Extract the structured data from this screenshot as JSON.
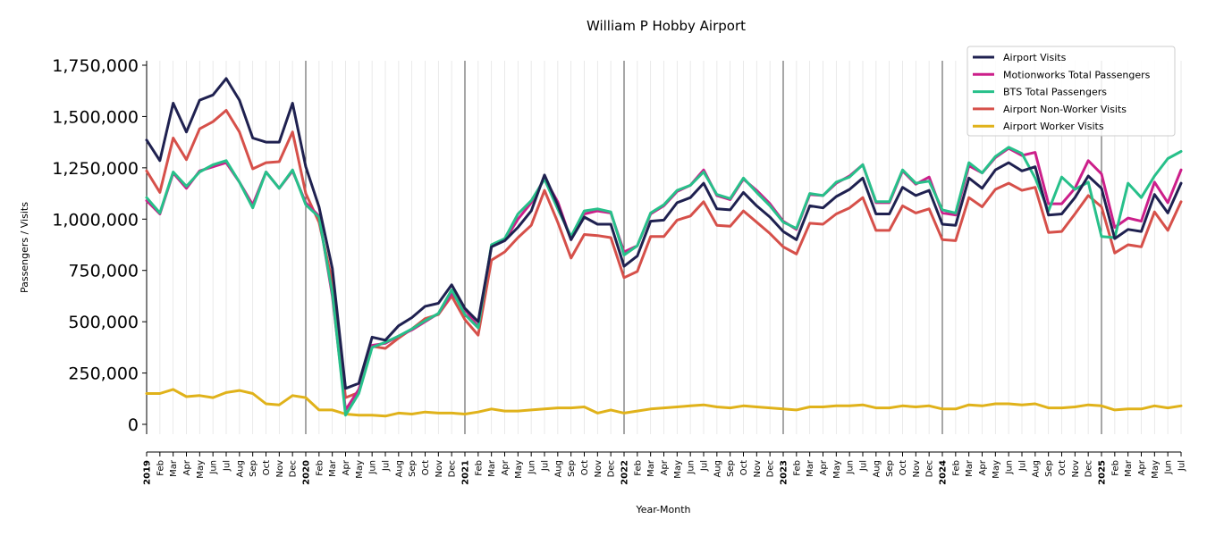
{
  "chart_data": {
    "type": "line",
    "title": "William P Hobby Airport",
    "xlabel": "Year-Month",
    "ylabel": "Passengers / Visits",
    "ylim": [
      0,
      1750000
    ],
    "yticks": [
      "0",
      "250,000",
      "500,000",
      "750,000",
      "1,000,000",
      "1,250,000",
      "1,500,000",
      "1,750,000"
    ],
    "ytick_values": [
      0,
      250000,
      500000,
      750000,
      1000000,
      1250000,
      1500000,
      1750000
    ],
    "grid": "vertical monthly lines, darker at year boundaries",
    "legend_position": "top-right",
    "months": [
      "2019",
      "Feb",
      "Mar",
      "Apr",
      "May",
      "Jun",
      "Jul",
      "Aug",
      "Sep",
      "Oct",
      "Nov",
      "Dec",
      "2020",
      "Feb",
      "Mar",
      "Apr",
      "May",
      "Jun",
      "Jul",
      "Aug",
      "Sep",
      "Oct",
      "Nov",
      "Dec",
      "2021",
      "Feb",
      "Mar",
      "Apr",
      "May",
      "Jun",
      "Jul",
      "Aug",
      "Sep",
      "Oct",
      "Nov",
      "Dec",
      "2022",
      "Feb",
      "Mar",
      "Apr",
      "May",
      "Jun",
      "Jul",
      "Aug",
      "Sep",
      "Oct",
      "Nov",
      "Dec",
      "2023",
      "Feb",
      "Mar",
      "Apr",
      "May",
      "Jun",
      "Jul",
      "Aug",
      "Sep",
      "Oct",
      "Nov",
      "Dec",
      "2024",
      "Feb",
      "Mar",
      "Apr",
      "May",
      "Jun",
      "Jul",
      "Aug",
      "Sep",
      "Oct",
      "Nov",
      "Dec",
      "2025",
      "Feb",
      "Mar",
      "Apr",
      "May",
      "Jun",
      "Jul"
    ],
    "series": [
      {
        "name": "Airport Visits",
        "color": "#1f2150",
        "values": [
          1385000,
          1285000,
          1565000,
          1425000,
          1580000,
          1605000,
          1685000,
          1580000,
          1395000,
          1375000,
          1375000,
          1565000,
          1255000,
          1060000,
          760000,
          175000,
          200000,
          425000,
          410000,
          480000,
          520000,
          575000,
          590000,
          680000,
          565000,
          500000,
          865000,
          895000,
          960000,
          1040000,
          1215000,
          1070000,
          900000,
          1010000,
          975000,
          975000,
          770000,
          820000,
          990000,
          995000,
          1080000,
          1105000,
          1175000,
          1050000,
          1045000,
          1130000,
          1065000,
          1010000,
          940000,
          900000,
          1065000,
          1055000,
          1110000,
          1145000,
          1200000,
          1025000,
          1025000,
          1155000,
          1115000,
          1140000,
          975000,
          970000,
          1200000,
          1150000,
          1240000,
          1275000,
          1235000,
          1255000,
          1020000,
          1025000,
          1105000,
          1210000,
          1150000,
          905000,
          950000,
          940000,
          1120000,
          1030000,
          1175000
        ]
      },
      {
        "name": "Motionworks Total Passengers",
        "color": "#cc1f8a",
        "values": [
          1090000,
          1025000,
          1225000,
          1150000,
          1235000,
          1255000,
          1275000,
          1180000,
          1070000,
          1230000,
          1150000,
          1235000,
          1080000,
          1015000,
          625000,
          70000,
          170000,
          385000,
          395000,
          430000,
          460000,
          500000,
          540000,
          640000,
          560000,
          475000,
          870000,
          895000,
          1000000,
          1080000,
          1200000,
          1085000,
          900000,
          1025000,
          1040000,
          1030000,
          840000,
          870000,
          1025000,
          1065000,
          1135000,
          1165000,
          1240000,
          1115000,
          1095000,
          1195000,
          1140000,
          1075000,
          990000,
          950000,
          1120000,
          1115000,
          1175000,
          1210000,
          1265000,
          1080000,
          1080000,
          1235000,
          1170000,
          1205000,
          1030000,
          1020000,
          1260000,
          1225000,
          1300000,
          1345000,
          1310000,
          1325000,
          1075000,
          1075000,
          1150000,
          1285000,
          1220000,
          960000,
          1005000,
          990000,
          1180000,
          1080000,
          1240000
        ]
      },
      {
        "name": "BTS Total Passengers",
        "color": "#27c08a",
        "values": [
          1105000,
          1030000,
          1230000,
          1160000,
          1230000,
          1265000,
          1285000,
          1180000,
          1055000,
          1230000,
          1150000,
          1240000,
          1070000,
          1010000,
          640000,
          45000,
          150000,
          375000,
          400000,
          430000,
          465000,
          505000,
          540000,
          655000,
          535000,
          470000,
          875000,
          905000,
          1025000,
          1090000,
          1195000,
          1050000,
          915000,
          1040000,
          1050000,
          1035000,
          825000,
          870000,
          1030000,
          1070000,
          1140000,
          1165000,
          1230000,
          1120000,
          1100000,
          1200000,
          1130000,
          1065000,
          985000,
          955000,
          1125000,
          1115000,
          1180000,
          1205000,
          1265000,
          1085000,
          1085000,
          1240000,
          1175000,
          1185000,
          1045000,
          1030000,
          1275000,
          1225000,
          1305000,
          1350000,
          1320000,
          1200000,
          1040000,
          1205000,
          1145000,
          1180000,
          915000,
          910000,
          1175000,
          1105000,
          1210000,
          1295000,
          1330000
        ]
      },
      {
        "name": "Airport Non-Worker Visits",
        "color": "#d6504a",
        "values": [
          1235000,
          1130000,
          1395000,
          1290000,
          1440000,
          1475000,
          1530000,
          1425000,
          1245000,
          1275000,
          1280000,
          1425000,
          1125000,
          985000,
          695000,
          130000,
          155000,
          380000,
          370000,
          420000,
          465000,
          515000,
          535000,
          625000,
          510000,
          435000,
          800000,
          840000,
          910000,
          970000,
          1140000,
          985000,
          810000,
          925000,
          920000,
          910000,
          715000,
          745000,
          915000,
          915000,
          995000,
          1015000,
          1085000,
          970000,
          965000,
          1040000,
          985000,
          930000,
          865000,
          830000,
          980000,
          975000,
          1025000,
          1055000,
          1105000,
          945000,
          945000,
          1065000,
          1030000,
          1050000,
          900000,
          895000,
          1105000,
          1060000,
          1145000,
          1175000,
          1140000,
          1155000,
          935000,
          940000,
          1025000,
          1115000,
          1060000,
          835000,
          875000,
          865000,
          1035000,
          945000,
          1085000
        ]
      },
      {
        "name": "Airport Worker Visits",
        "color": "#e0b21a",
        "values": [
          150000,
          150000,
          170000,
          135000,
          140000,
          130000,
          155000,
          165000,
          150000,
          100000,
          95000,
          140000,
          130000,
          70000,
          70000,
          50000,
          45000,
          45000,
          40000,
          55000,
          50000,
          60000,
          55000,
          55000,
          50000,
          60000,
          75000,
          65000,
          65000,
          70000,
          75000,
          80000,
          80000,
          85000,
          55000,
          70000,
          55000,
          65000,
          75000,
          80000,
          85000,
          90000,
          95000,
          85000,
          80000,
          90000,
          85000,
          80000,
          75000,
          70000,
          85000,
          85000,
          90000,
          90000,
          95000,
          80000,
          80000,
          90000,
          85000,
          90000,
          75000,
          75000,
          95000,
          90000,
          100000,
          100000,
          95000,
          100000,
          80000,
          80000,
          85000,
          95000,
          90000,
          70000,
          75000,
          75000,
          90000,
          80000,
          90000
        ]
      }
    ]
  }
}
